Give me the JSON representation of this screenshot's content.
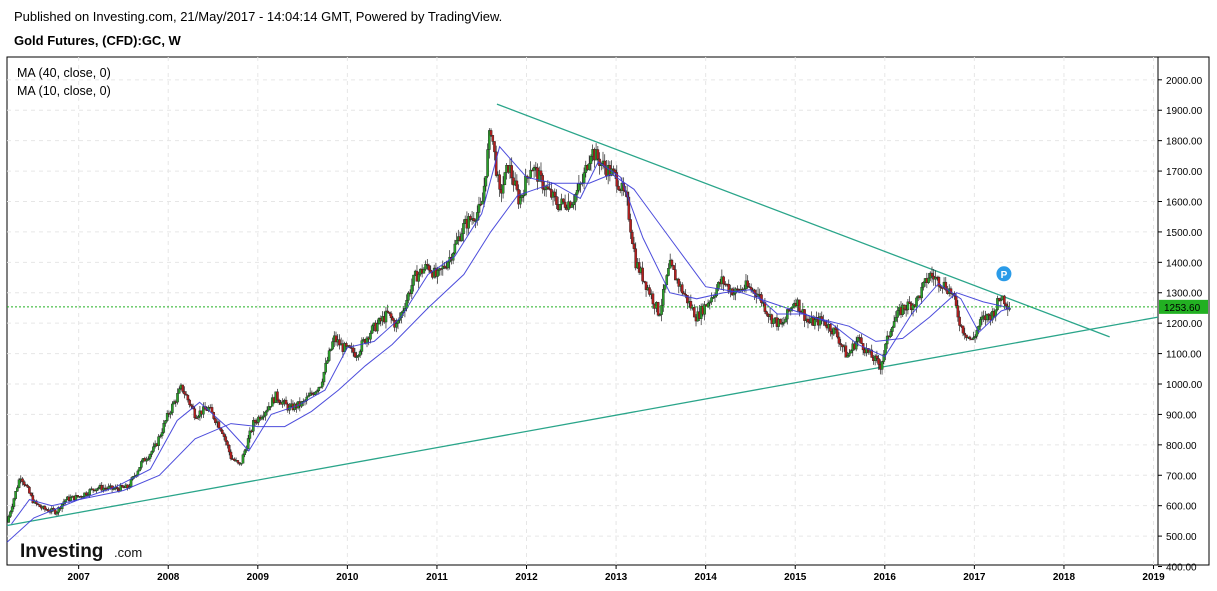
{
  "header": {
    "published": "Published on Investing.com, 21/May/2017 - 14:04:14 GMT, Powered by TradingView.",
    "instrument": "Gold Futures, (CFD):GC, W"
  },
  "legend": {
    "ma40": "MA (40, close, 0)",
    "ma10": "MA (10, close, 0)"
  },
  "logo": {
    "brand": "Investing",
    "suffix": ".com"
  },
  "colors": {
    "up": "#2aa02a",
    "down": "#b41e1e",
    "ma40": "#3a3ad8",
    "ma10": "#3a3ad8",
    "trendline": "#2aa58a",
    "price_line": "#22b022",
    "price_label_bg": "#22b022",
    "marker": "#2a9be8"
  },
  "marker": {
    "label": "P",
    "date": 2017.33,
    "price": 1290
  },
  "chart_data": {
    "type": "candlestick",
    "title": "Gold Futures, (CFD):GC, W",
    "xlim": [
      2006.2,
      2019.05
    ],
    "ylim": [
      405,
      2075
    ],
    "y_ticks": [
      400,
      500,
      600,
      700,
      800,
      900,
      1000,
      1100,
      1200,
      1300,
      1400,
      1500,
      1600,
      1700,
      1800,
      1900,
      2000
    ],
    "y_tick_labels": [
      "400.00",
      "500.00",
      "600.00",
      "700.00",
      "800.00",
      "900.00",
      "1000.00",
      "1100.00",
      "1200.00",
      "1300.00",
      "1400.00",
      "1500.00",
      "1600.00",
      "1700.00",
      "1800.00",
      "1900.00",
      "2000.00"
    ],
    "x_ticks": [
      2007,
      2008,
      2009,
      2010,
      2011,
      2012,
      2013,
      2014,
      2015,
      2016,
      2017,
      2018,
      2019
    ],
    "x_tick_labels": [
      "2007",
      "2008",
      "2009",
      "2010",
      "2011",
      "2012",
      "2013",
      "2014",
      "2015",
      "2016",
      "2017",
      "2018",
      "2019"
    ],
    "current_price": 1253.6,
    "current_price_label": "1253.60",
    "close_path": [
      [
        2006.2,
        545
      ],
      [
        2006.35,
        700
      ],
      [
        2006.5,
        610
      ],
      [
        2006.6,
        590
      ],
      [
        2006.75,
        580
      ],
      [
        2006.85,
        620
      ],
      [
        2007.0,
        630
      ],
      [
        2007.2,
        660
      ],
      [
        2007.4,
        655
      ],
      [
        2007.55,
        660
      ],
      [
        2007.7,
        740
      ],
      [
        2007.85,
        790
      ],
      [
        2008.0,
        900
      ],
      [
        2008.15,
        990
      ],
      [
        2008.3,
        900
      ],
      [
        2008.45,
        920
      ],
      [
        2008.6,
        850
      ],
      [
        2008.7,
        760
      ],
      [
        2008.8,
        730
      ],
      [
        2008.95,
        870
      ],
      [
        2009.1,
        920
      ],
      [
        2009.2,
        960
      ],
      [
        2009.35,
        920
      ],
      [
        2009.5,
        935
      ],
      [
        2009.7,
        1000
      ],
      [
        2009.85,
        1150
      ],
      [
        2009.95,
        1120
      ],
      [
        2010.1,
        1100
      ],
      [
        2010.25,
        1170
      ],
      [
        2010.45,
        1230
      ],
      [
        2010.55,
        1190
      ],
      [
        2010.75,
        1350
      ],
      [
        2010.9,
        1390
      ],
      [
        2011.0,
        1350
      ],
      [
        2011.15,
        1420
      ],
      [
        2011.3,
        1520
      ],
      [
        2011.5,
        1580
      ],
      [
        2011.6,
        1850
      ],
      [
        2011.7,
        1620
      ],
      [
        2011.8,
        1720
      ],
      [
        2011.92,
        1600
      ],
      [
        2012.05,
        1720
      ],
      [
        2012.2,
        1650
      ],
      [
        2012.35,
        1590
      ],
      [
        2012.5,
        1600
      ],
      [
        2012.62,
        1660
      ],
      [
        2012.72,
        1770
      ],
      [
        2012.85,
        1720
      ],
      [
        2013.0,
        1680
      ],
      [
        2013.12,
        1600
      ],
      [
        2013.22,
        1400
      ],
      [
        2013.38,
        1300
      ],
      [
        2013.48,
        1230
      ],
      [
        2013.6,
        1390
      ],
      [
        2013.75,
        1300
      ],
      [
        2013.9,
        1220
      ],
      [
        2014.05,
        1280
      ],
      [
        2014.18,
        1340
      ],
      [
        2014.32,
        1300
      ],
      [
        2014.45,
        1320
      ],
      [
        2014.58,
        1300
      ],
      [
        2014.72,
        1220
      ],
      [
        2014.85,
        1190
      ],
      [
        2015.0,
        1280
      ],
      [
        2015.15,
        1200
      ],
      [
        2015.3,
        1210
      ],
      [
        2015.45,
        1170
      ],
      [
        2015.58,
        1090
      ],
      [
        2015.7,
        1150
      ],
      [
        2015.82,
        1100
      ],
      [
        2015.95,
        1060
      ],
      [
        2016.08,
        1200
      ],
      [
        2016.2,
        1250
      ],
      [
        2016.35,
        1270
      ],
      [
        2016.5,
        1360
      ],
      [
        2016.65,
        1330
      ],
      [
        2016.75,
        1300
      ],
      [
        2016.85,
        1190
      ],
      [
        2016.97,
        1140
      ],
      [
        2017.08,
        1210
      ],
      [
        2017.2,
        1230
      ],
      [
        2017.3,
        1290
      ],
      [
        2017.4,
        1253.6
      ]
    ],
    "series": [
      {
        "name": "MA (40, close, 0)",
        "points": [
          [
            2006.2,
            480
          ],
          [
            2006.5,
            560
          ],
          [
            2007.0,
            620
          ],
          [
            2007.5,
            650
          ],
          [
            2007.9,
            700
          ],
          [
            2008.3,
            820
          ],
          [
            2008.7,
            870
          ],
          [
            2009.0,
            860
          ],
          [
            2009.3,
            860
          ],
          [
            2009.6,
            910
          ],
          [
            2009.9,
            980
          ],
          [
            2010.2,
            1060
          ],
          [
            2010.5,
            1130
          ],
          [
            2010.9,
            1250
          ],
          [
            2011.3,
            1360
          ],
          [
            2011.6,
            1500
          ],
          [
            2011.9,
            1620
          ],
          [
            2012.3,
            1660
          ],
          [
            2012.7,
            1660
          ],
          [
            2012.95,
            1690
          ],
          [
            2013.2,
            1640
          ],
          [
            2013.6,
            1480
          ],
          [
            2014.0,
            1320
          ],
          [
            2014.4,
            1300
          ],
          [
            2014.8,
            1260
          ],
          [
            2015.2,
            1220
          ],
          [
            2015.6,
            1190
          ],
          [
            2015.9,
            1140
          ],
          [
            2016.2,
            1150
          ],
          [
            2016.5,
            1220
          ],
          [
            2016.8,
            1300
          ],
          [
            2017.1,
            1270
          ],
          [
            2017.4,
            1250
          ]
        ]
      },
      {
        "name": "MA (10, close, 0)",
        "points": [
          [
            2006.25,
            540
          ],
          [
            2006.45,
            620
          ],
          [
            2006.7,
            600
          ],
          [
            2007.0,
            620
          ],
          [
            2007.4,
            660
          ],
          [
            2007.8,
            720
          ],
          [
            2008.1,
            880
          ],
          [
            2008.35,
            940
          ],
          [
            2008.65,
            860
          ],
          [
            2008.9,
            780
          ],
          [
            2009.15,
            900
          ],
          [
            2009.45,
            930
          ],
          [
            2009.75,
            980
          ],
          [
            2010.0,
            1120
          ],
          [
            2010.3,
            1140
          ],
          [
            2010.6,
            1220
          ],
          [
            2010.9,
            1360
          ],
          [
            2011.2,
            1420
          ],
          [
            2011.5,
            1560
          ],
          [
            2011.7,
            1780
          ],
          [
            2012.0,
            1680
          ],
          [
            2012.3,
            1660
          ],
          [
            2012.6,
            1610
          ],
          [
            2012.8,
            1730
          ],
          [
            2013.05,
            1680
          ],
          [
            2013.3,
            1480
          ],
          [
            2013.6,
            1300
          ],
          [
            2013.9,
            1280
          ],
          [
            2014.2,
            1300
          ],
          [
            2014.5,
            1310
          ],
          [
            2014.8,
            1230
          ],
          [
            2015.1,
            1230
          ],
          [
            2015.4,
            1200
          ],
          [
            2015.7,
            1130
          ],
          [
            2016.0,
            1090
          ],
          [
            2016.3,
            1230
          ],
          [
            2016.6,
            1330
          ],
          [
            2016.85,
            1280
          ],
          [
            2017.05,
            1170
          ],
          [
            2017.3,
            1240
          ],
          [
            2017.4,
            1250
          ]
        ]
      }
    ],
    "trendlines": [
      {
        "from": [
          2011.67,
          1920
        ],
        "to": [
          2018.51,
          1155
        ]
      },
      {
        "from": [
          2006.2,
          535
        ],
        "to": [
          2019.05,
          1220
        ]
      }
    ]
  }
}
